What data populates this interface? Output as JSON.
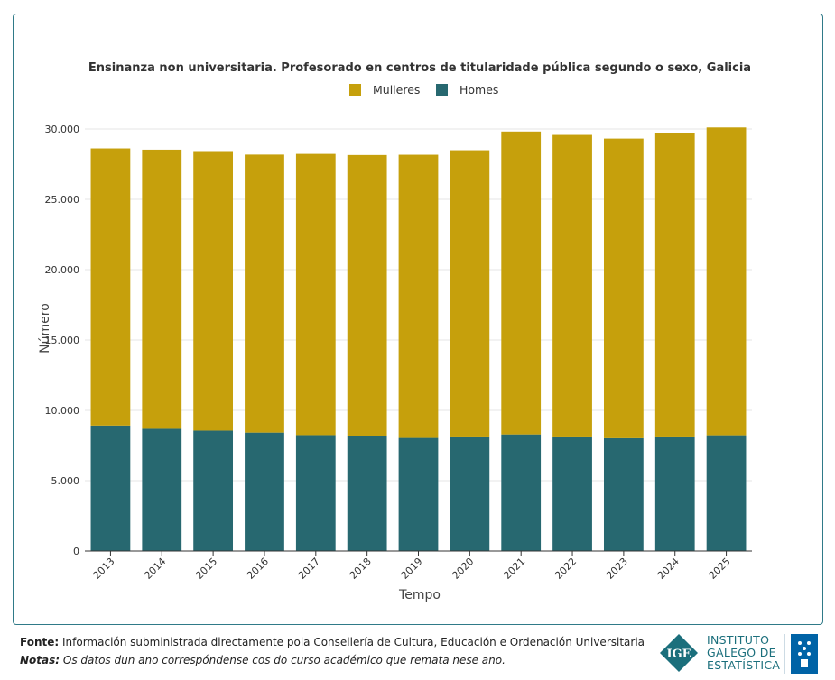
{
  "chart_data": {
    "type": "bar",
    "stacked": true,
    "title": "Ensinanza non universitaria. Profesorado en centros de titularidade pública segundo o sexo, Galicia",
    "xlabel": "Tempo",
    "ylabel": "Número",
    "ylim": [
      0,
      30000
    ],
    "yticks": [
      0,
      5000,
      10000,
      15000,
      20000,
      25000,
      30000
    ],
    "ytick_labels": [
      "0",
      "5.000",
      "10.000",
      "15.000",
      "20.000",
      "25.000",
      "30.000"
    ],
    "categories": [
      "2013",
      "2014",
      "2015",
      "2016",
      "2017",
      "2018",
      "2019",
      "2020",
      "2021",
      "2022",
      "2023",
      "2024",
      "2025"
    ],
    "series": [
      {
        "name": "Homes",
        "color": "#276870",
        "values": [
          8920,
          8690,
          8560,
          8420,
          8240,
          8150,
          8040,
          8080,
          8290,
          8080,
          8020,
          8080,
          8230
        ]
      },
      {
        "name": "Mulleres",
        "color": "#c6a00c",
        "values": [
          19700,
          19840,
          19870,
          19760,
          19990,
          20000,
          20130,
          20410,
          21530,
          21500,
          21300,
          21610,
          21880
        ]
      }
    ],
    "legend": [
      {
        "name": "Mulleres",
        "color": "#c6a00c"
      },
      {
        "name": "Homes",
        "color": "#276870"
      }
    ],
    "legend_position": "top-center",
    "grid": true
  },
  "footer": {
    "source_label": "Fonte:",
    "source_text": "Información subministrada directamente pola Consellería de Cultura, Educación e Ordenación Universitaria",
    "notes_label": "Notas:",
    "notes_text": "Os datos dun ano correspóndense cos do curso académico que remata nese ano."
  },
  "logo": {
    "line1": "INSTITUTO",
    "line2": "GALEGO DE",
    "line3": "ESTATÍSTICA",
    "accent": "#1b6f7c",
    "badge_color": "#0063a6"
  }
}
